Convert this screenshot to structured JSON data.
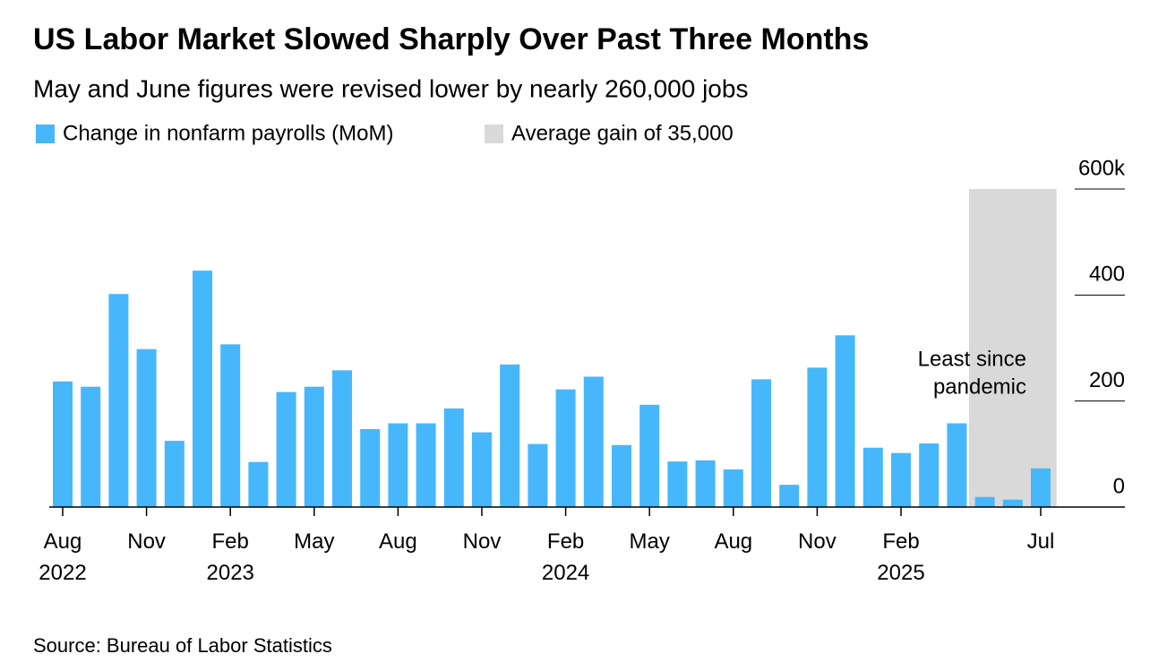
{
  "chart_data": {
    "type": "bar",
    "title": "US Labor Market Slowed Sharply Over Past Three Months",
    "subtitle": "May and June figures were revised lower by nearly 260,000 jobs",
    "series": [
      {
        "name": "Change in nonfarm payrolls (MoM)",
        "color": "#46b7fa",
        "values": [
          237,
          227,
          402,
          298,
          125,
          446,
          307,
          85,
          217,
          227,
          258,
          147,
          158,
          158,
          186,
          141,
          269,
          119,
          222,
          246,
          117,
          193,
          86,
          88,
          71,
          241,
          42,
          263,
          324,
          112,
          102,
          120,
          158,
          19,
          14,
          73
        ]
      }
    ],
    "highlight": {
      "name": "Average gain of 35,000",
      "color": "#d9d9d9",
      "range": [
        33,
        35
      ]
    },
    "categories": [
      "Aug 2022",
      null,
      null,
      "Nov",
      null,
      null,
      "Feb 2023",
      null,
      null,
      "May",
      null,
      null,
      "Aug",
      null,
      null,
      "Nov",
      null,
      null,
      "Feb 2024",
      null,
      null,
      "May",
      null,
      null,
      "Aug",
      null,
      null,
      "Nov",
      null,
      null,
      "Feb 2025",
      null,
      null,
      null,
      null,
      "Jul"
    ],
    "ylim": [
      0,
      600
    ],
    "yticks": [
      0,
      200,
      400,
      {
        "value": 600,
        "label": "600k"
      }
    ],
    "annotation": [
      "Least since",
      "pandemic"
    ],
    "source": "Source: Bureau of Labor Statistics"
  }
}
